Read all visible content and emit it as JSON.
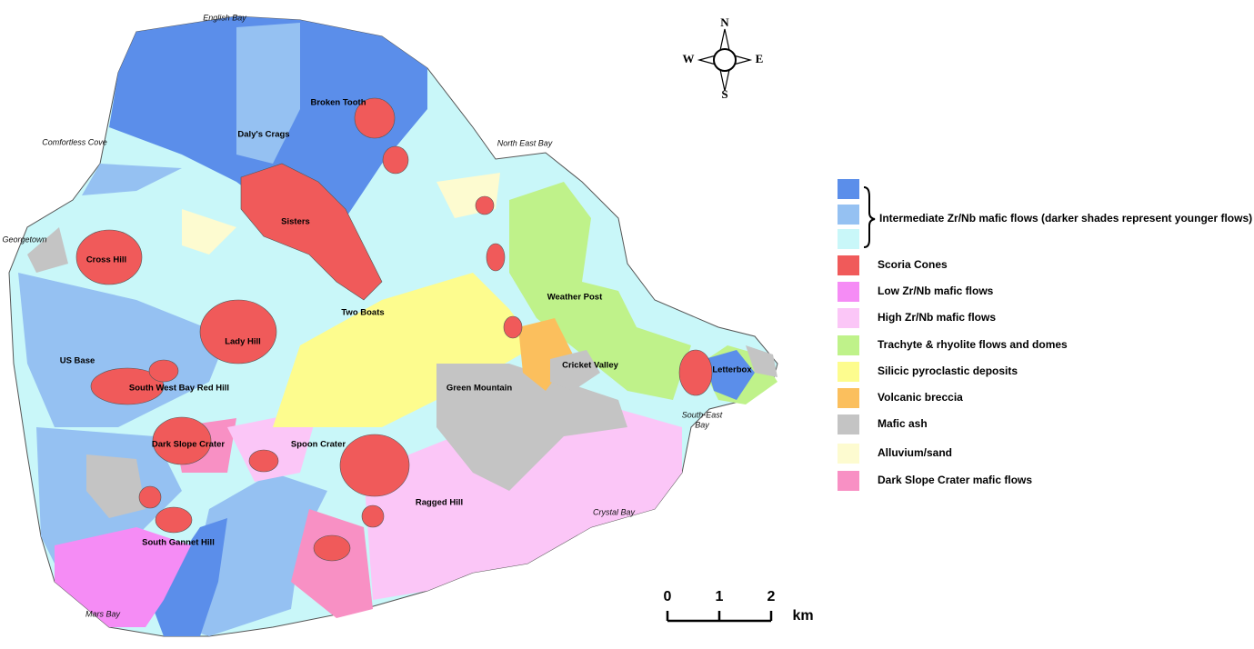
{
  "map": {
    "bays": [
      "English Bay",
      "Comfortless Cove",
      "North East Bay",
      "Georgetown",
      "South-East",
      "Bay",
      "Crystal Bay",
      "Mars Bay"
    ],
    "features": [
      "Broken Tooth",
      "Daly's Crags",
      "Sisters",
      "Cross Hill",
      "Two Boats",
      "Weather Post",
      "Lady Hill",
      "US Base",
      "Cricket Valley",
      "Letterbox",
      "South West Bay Red Hill",
      "Green Mountain",
      "Dark Slope Crater",
      "Spoon Crater",
      "Ragged Hill",
      "South Gannet Hill"
    ]
  },
  "compass": {
    "north": "N",
    "west": "W",
    "east": "E",
    "south": "S"
  },
  "scale": {
    "ticks": [
      "0",
      "1",
      "2"
    ],
    "unit": "km"
  },
  "legend": {
    "group_label": "Intermediate Zr/Nb mafic flows (darker shades represent younger flows)",
    "group_colors": [
      "#5b8eea",
      "#95c1f2",
      "#c9f7f9"
    ],
    "items": [
      {
        "label": "Scoria Cones",
        "color": "#f05a5a"
      },
      {
        "label": "Low Zr/Nb mafic flows",
        "color": "#f58cf5"
      },
      {
        "label": "High Zr/Nb mafic flows",
        "color": "#fbc6f7"
      },
      {
        "label": "Trachyte & rhyolite flows and domes",
        "color": "#bff28a"
      },
      {
        "label": "Silicic pyroclastic deposits",
        "color": "#fdfc8e"
      },
      {
        "label": "Volcanic breccia",
        "color": "#fbbf5d"
      },
      {
        "label": "Mafic ash",
        "color": "#c4c4c4"
      },
      {
        "label": "Alluvium/sand",
        "color": "#fdfbd0"
      },
      {
        "label": "Dark Slope Crater mafic flows",
        "color": "#f890c4"
      }
    ]
  }
}
